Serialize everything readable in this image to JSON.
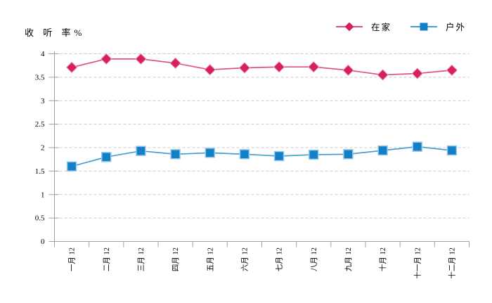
{
  "chart_data": {
    "type": "line",
    "ylabel": "收 听 率%",
    "categories": [
      "一月 12",
      "二月 12",
      "三月 12",
      "四月 12",
      "五月 12",
      "六月 12",
      "七月 12",
      "八月 12",
      "九月 12",
      "十月 12",
      "十一月 12",
      "十二月 12"
    ],
    "series": [
      {
        "name": "在家",
        "marker": "diamond",
        "color": "#D51F5F",
        "line_color": "#E0517F",
        "marker_edge": "#EC9FBB",
        "values": [
          3.71,
          3.89,
          3.89,
          3.8,
          3.66,
          3.7,
          3.72,
          3.72,
          3.65,
          3.55,
          3.58,
          3.65
        ]
      },
      {
        "name": "户外",
        "marker": "square",
        "color": "#1180C6",
        "line_color": "#44A0D6",
        "marker_edge": "#9AC9E9",
        "values": [
          1.6,
          1.8,
          1.93,
          1.86,
          1.89,
          1.86,
          1.82,
          1.85,
          1.86,
          1.94,
          2.02,
          1.94
        ]
      }
    ],
    "ylim": [
      0,
      4
    ],
    "ytick_step": 0.5,
    "ytick_labels": [
      "0",
      "0.5",
      "1",
      "1.5",
      "2",
      "2.5",
      "3",
      "3.5",
      "4"
    ],
    "grid": "horizontal-dashed",
    "legend_position": "top-right",
    "axis_color": "#A0A0A0",
    "grid_color": "#CBCBCB",
    "label_color": "#000000",
    "background": "#FFFFFF"
  }
}
